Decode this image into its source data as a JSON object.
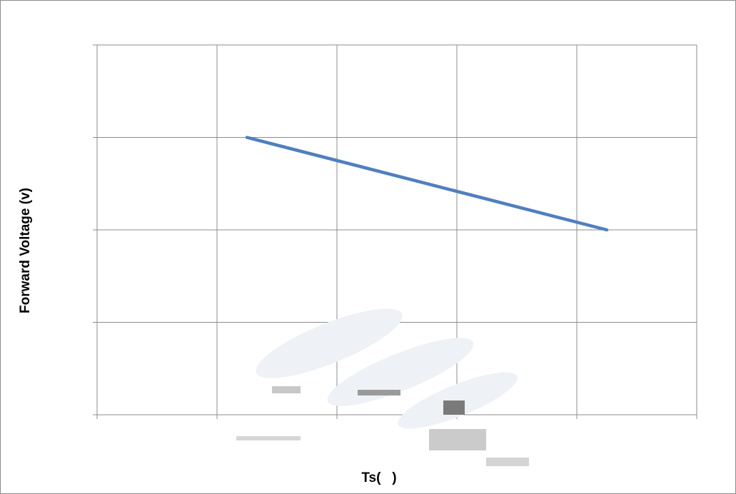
{
  "chart_data": {
    "type": "line",
    "title": "",
    "xlabel": "Ts(   )",
    "ylabel": "Forward Voltage (v)",
    "x_categories": 5,
    "y_gridlines": 4,
    "grid": true,
    "legend": "none",
    "series": [
      {
        "color": "#4f7fbf",
        "x": [
          1.25,
          4.25
        ],
        "y": [
          3,
          2
        ]
      }
    ],
    "xlim": [
      0,
      5
    ],
    "ylim": [
      0,
      4
    ]
  }
}
